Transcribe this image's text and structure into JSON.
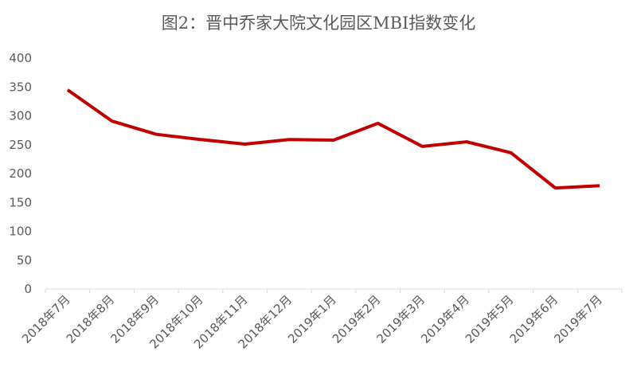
{
  "chart_data": {
    "type": "line",
    "title": "图2：晋中乔家大院文化园区MBI指数变化",
    "categories": [
      "2018年7月",
      "2018年8月",
      "2018年9月",
      "2018年10月",
      "2018年11月",
      "2018年12月",
      "2019年1月",
      "2019年2月",
      "2019年3月",
      "2019年4月",
      "2019年5月",
      "2019年6月",
      "2019年7月"
    ],
    "series": [
      {
        "color": "#c00000",
        "values": [
          345,
          291,
          268,
          259,
          251,
          259,
          258,
          287,
          247,
          255,
          236,
          175,
          179
        ]
      }
    ],
    "ylim": [
      0,
      400
    ],
    "yticks": [
      0,
      50,
      100,
      150,
      200,
      250,
      300,
      350,
      400
    ],
    "grid": false
  }
}
